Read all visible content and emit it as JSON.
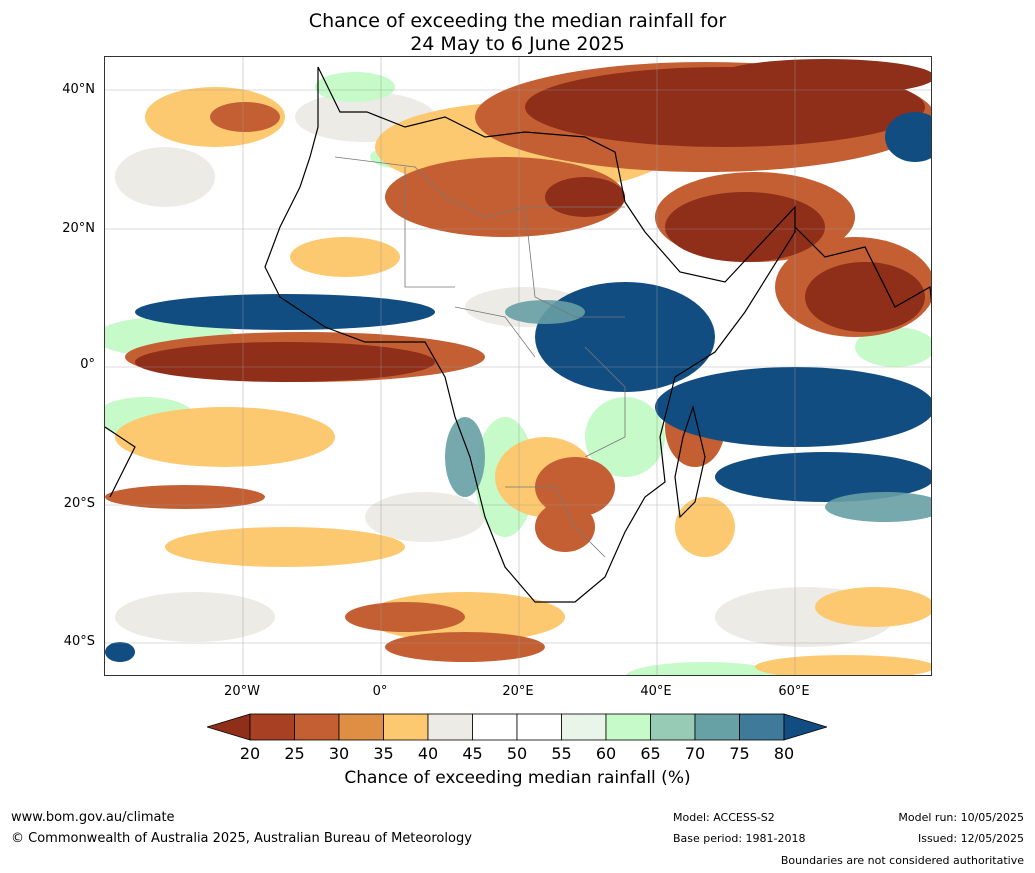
{
  "title": {
    "line1": "Chance of exceeding the median rainfall for",
    "line2": "24 May to 6 June 2025"
  },
  "map": {
    "lat_labels": [
      "40°N",
      "20°N",
      "0°",
      "20°S",
      "40°S"
    ],
    "lon_labels": [
      "20°W",
      "0°",
      "20°E",
      "40°E",
      "60°E"
    ]
  },
  "colorbar": {
    "ticks": [
      "20",
      "25",
      "30",
      "35",
      "40",
      "45",
      "50",
      "55",
      "60",
      "65",
      "70",
      "75",
      "80"
    ],
    "colors": [
      "#8f2e19",
      "#a84123",
      "#c45f33",
      "#df8f44",
      "#fdc970",
      "#ecebe6",
      "#ffffff",
      "#ffffff",
      "#e8f5e8",
      "#c6fac9",
      "#98cbb5",
      "#67a0a5",
      "#3f7a9a",
      "#124d82"
    ],
    "label": "Chance of exceeding median rainfall (%)"
  },
  "footer": {
    "website": "www.bom.gov.au/climate",
    "copyright": "© Commonwealth of Australia 2025, Australian Bureau of Meteorology",
    "model": "Model: ACCESS-S2",
    "base_period": "Base period: 1981-2018",
    "model_run": "Model run: 10/05/2025",
    "issued": "Issued: 12/05/2025",
    "disclaimer": "Boundaries are not considered authoritative"
  }
}
